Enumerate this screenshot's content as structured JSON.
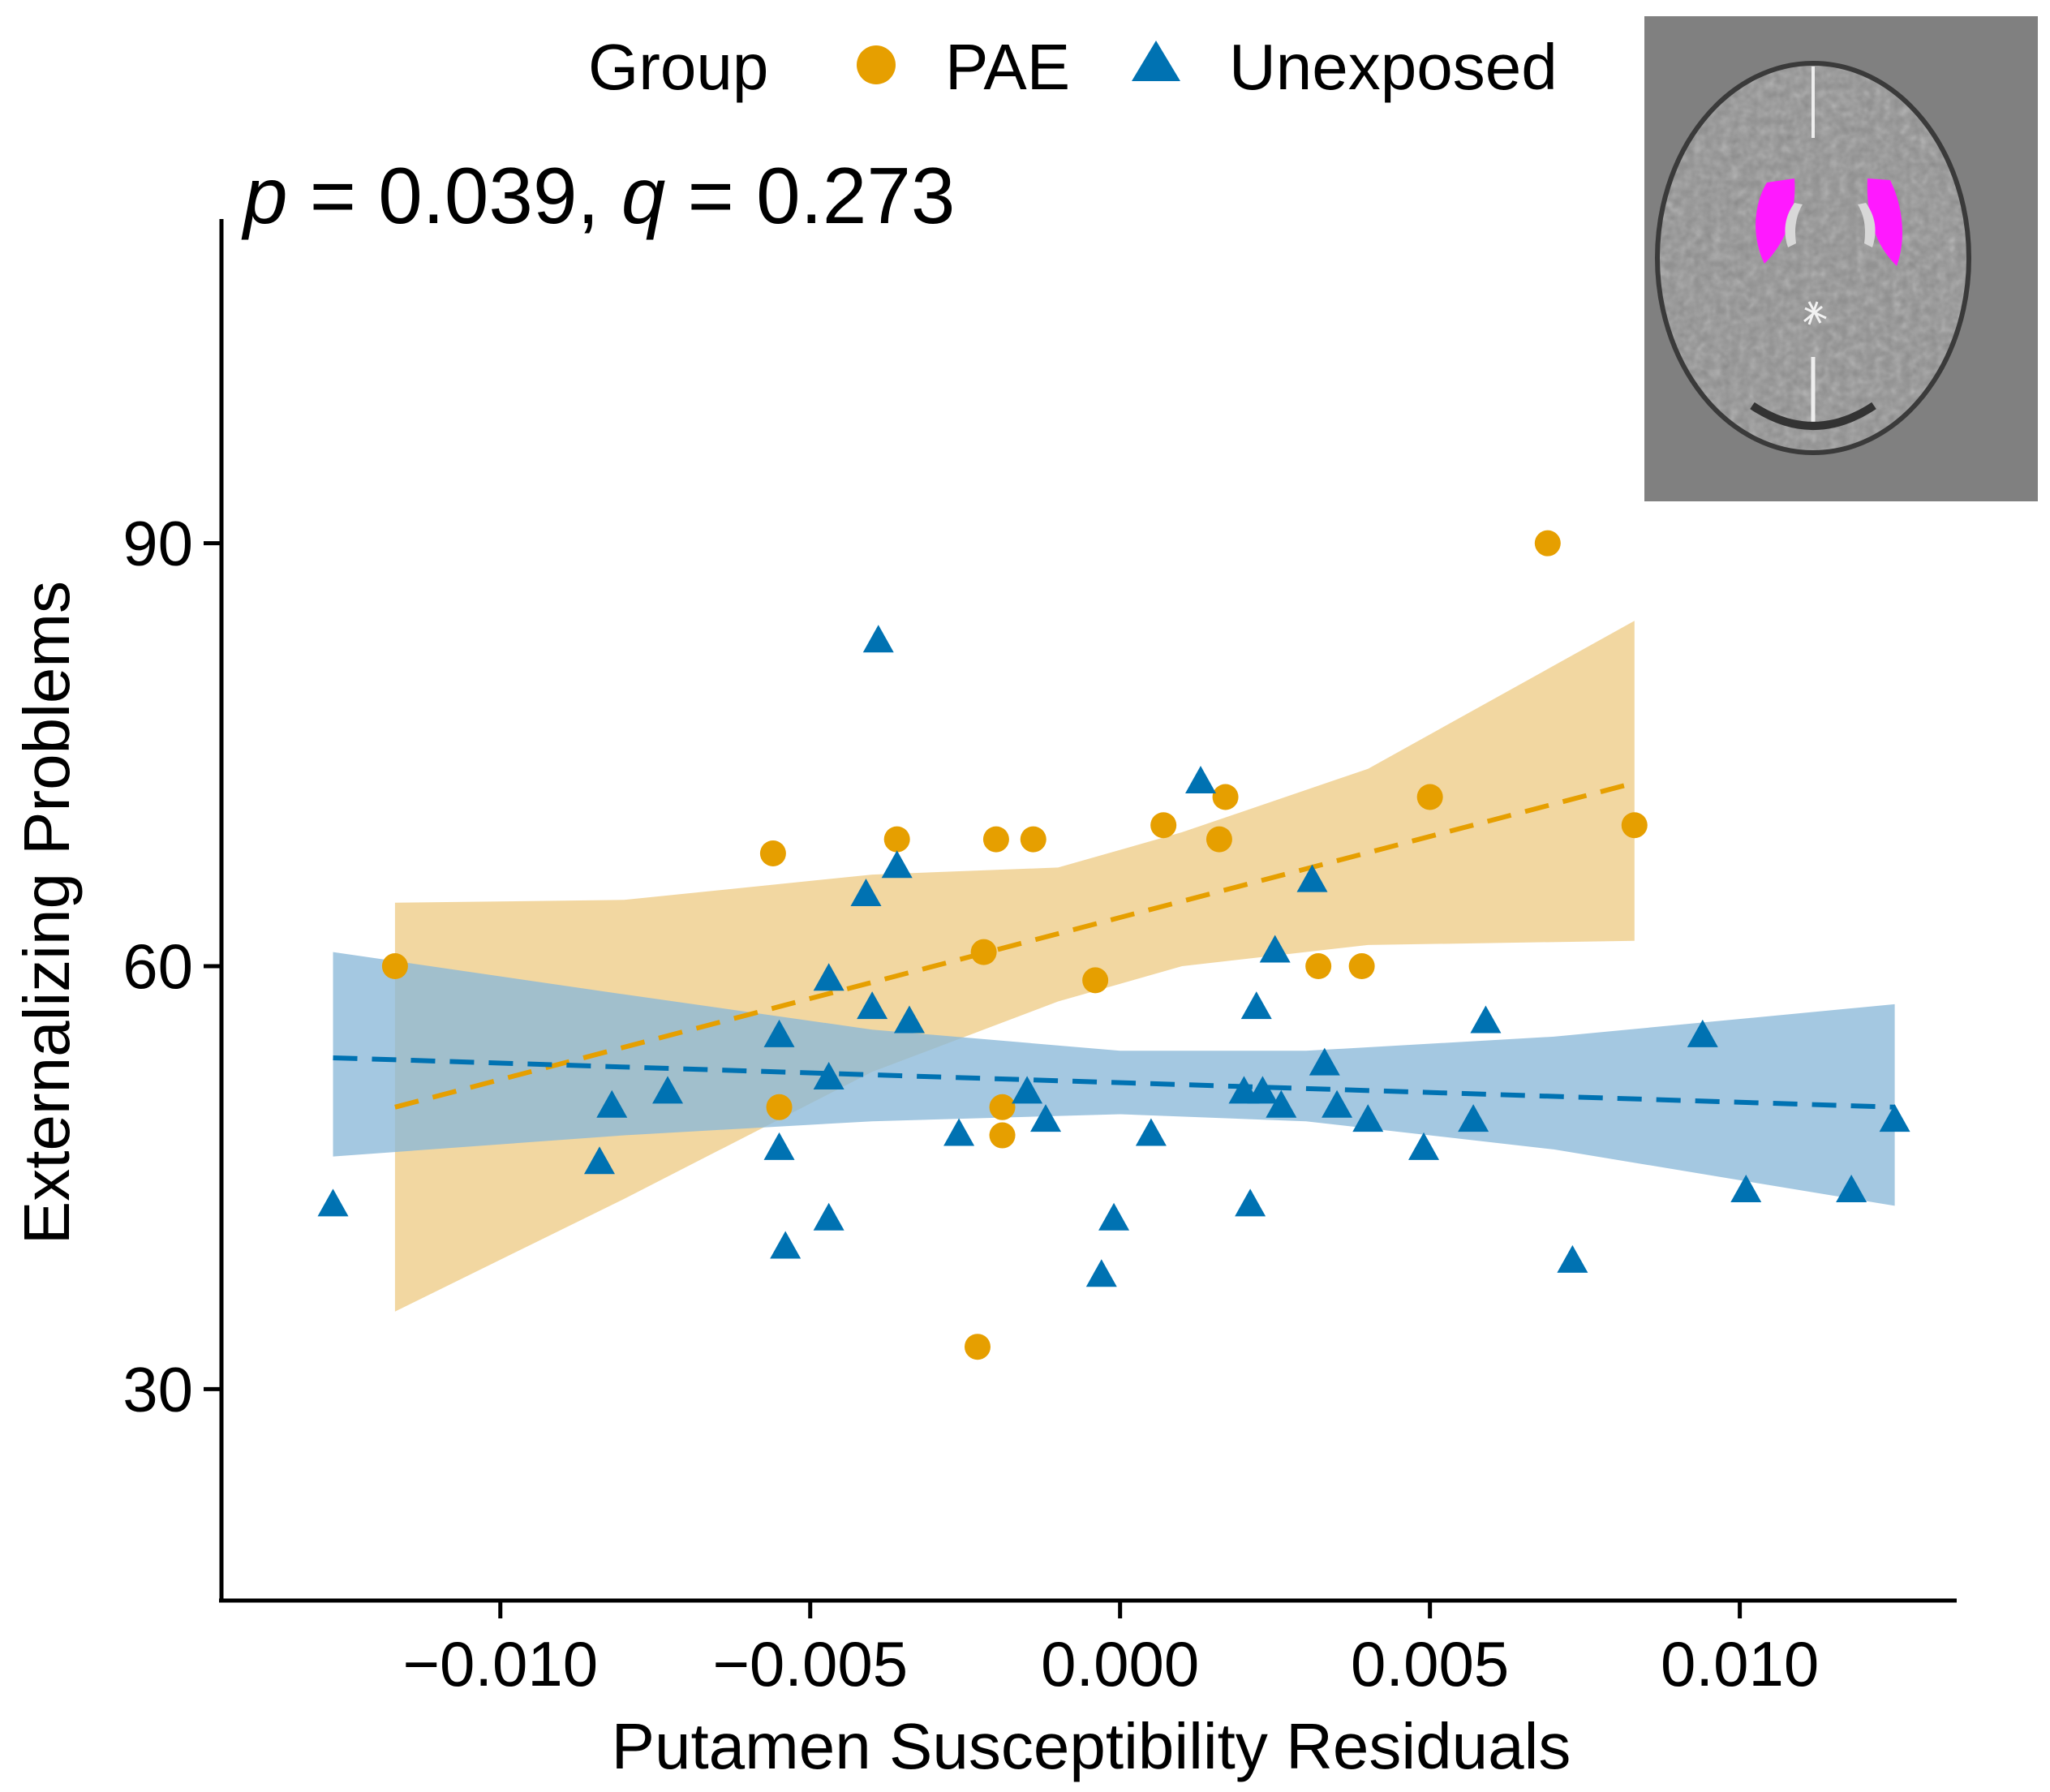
{
  "chart_data": {
    "type": "scatter",
    "title": "",
    "xlabel": "Putamen Susceptibility Residuals",
    "ylabel": "Externalizing Problems",
    "xlim": [
      -0.0145,
      0.0135
    ],
    "ylim": [
      15,
      113
    ],
    "x_ticks": [
      -0.01,
      -0.005,
      0.0,
      0.005,
      0.01
    ],
    "x_tick_labels": [
      "−0.010",
      "−0.005",
      "0.000",
      "0.005",
      "0.010"
    ],
    "y_ticks": [
      30,
      60,
      90
    ],
    "y_tick_labels": [
      "30",
      "60",
      "90"
    ],
    "annotation": {
      "p_symbol": "p",
      "p_text": " = 0.039, ",
      "q_symbol": "q",
      "q_text": " = 0.273"
    },
    "legend": {
      "title": "Group",
      "position": "top"
    },
    "inset_image": "brain-mri-axial-slice-putamen-highlighted",
    "series": [
      {
        "name": "PAE",
        "marker": "circle",
        "color": "#E69F00",
        "band_color": "#F0D090",
        "points": [
          {
            "x": -0.0117,
            "y": 60
          },
          {
            "x": -0.0056,
            "y": 68
          },
          {
            "x": -0.0055,
            "y": 50
          },
          {
            "x": -0.0036,
            "y": 69
          },
          {
            "x": -0.0023,
            "y": 33
          },
          {
            "x": -0.0022,
            "y": 61
          },
          {
            "x": -0.002,
            "y": 69
          },
          {
            "x": -0.0019,
            "y": 50
          },
          {
            "x": -0.0019,
            "y": 48
          },
          {
            "x": -0.0014,
            "y": 69
          },
          {
            "x": -0.0004,
            "y": 59
          },
          {
            "x": 0.0007,
            "y": 70
          },
          {
            "x": 0.0016,
            "y": 69
          },
          {
            "x": 0.0017,
            "y": 72
          },
          {
            "x": 0.0032,
            "y": 60
          },
          {
            "x": 0.0039,
            "y": 60
          },
          {
            "x": 0.005,
            "y": 72
          },
          {
            "x": 0.0069,
            "y": 90
          },
          {
            "x": 0.0083,
            "y": 70
          }
        ],
        "fit": {
          "x": [
            -0.0117,
            0.0083
          ],
          "y": [
            50,
            73
          ]
        },
        "band": {
          "x": [
            -0.0117,
            -0.008,
            -0.004,
            -0.001,
            0.001,
            0.004,
            0.0083
          ],
          "lower": [
            35.5,
            43.5,
            52.5,
            57.5,
            60.0,
            61.5,
            61.8
          ],
          "upper": [
            64.5,
            64.7,
            66.5,
            67.0,
            69.5,
            74.0,
            84.5
          ]
        }
      },
      {
        "name": "Unexposed",
        "marker": "triangle",
        "color": "#0072B2",
        "band_color": "#8AB8D8",
        "points": [
          {
            "x": -0.0127,
            "y": 43
          },
          {
            "x": -0.0084,
            "y": 46
          },
          {
            "x": -0.0082,
            "y": 50
          },
          {
            "x": -0.0073,
            "y": 51
          },
          {
            "x": -0.0055,
            "y": 47
          },
          {
            "x": -0.0055,
            "y": 55
          },
          {
            "x": -0.0054,
            "y": 40
          },
          {
            "x": -0.0047,
            "y": 59
          },
          {
            "x": -0.0047,
            "y": 52
          },
          {
            "x": -0.0047,
            "y": 42
          },
          {
            "x": -0.0041,
            "y": 65
          },
          {
            "x": -0.004,
            "y": 57
          },
          {
            "x": -0.0039,
            "y": 83
          },
          {
            "x": -0.0036,
            "y": 67
          },
          {
            "x": -0.0034,
            "y": 56
          },
          {
            "x": -0.0026,
            "y": 48
          },
          {
            "x": -0.0015,
            "y": 51
          },
          {
            "x": -0.0012,
            "y": 49
          },
          {
            "x": -0.0003,
            "y": 38
          },
          {
            "x": -0.0001,
            "y": 42
          },
          {
            "x": 0.0005,
            "y": 48
          },
          {
            "x": 0.0013,
            "y": 73
          },
          {
            "x": 0.002,
            "y": 51
          },
          {
            "x": 0.0021,
            "y": 43
          },
          {
            "x": 0.0022,
            "y": 57
          },
          {
            "x": 0.0023,
            "y": 51
          },
          {
            "x": 0.0025,
            "y": 61
          },
          {
            "x": 0.0026,
            "y": 50
          },
          {
            "x": 0.0031,
            "y": 66
          },
          {
            "x": 0.0033,
            "y": 53
          },
          {
            "x": 0.0035,
            "y": 50
          },
          {
            "x": 0.004,
            "y": 49
          },
          {
            "x": 0.0049,
            "y": 47
          },
          {
            "x": 0.0057,
            "y": 49
          },
          {
            "x": 0.0059,
            "y": 56
          },
          {
            "x": 0.0073,
            "y": 39
          },
          {
            "x": 0.0094,
            "y": 55
          },
          {
            "x": 0.0101,
            "y": 44
          },
          {
            "x": 0.0118,
            "y": 44
          },
          {
            "x": 0.0125,
            "y": 49
          }
        ],
        "fit": {
          "x": [
            -0.0127,
            0.0125
          ],
          "y": [
            53.5,
            50
          ]
        },
        "band": {
          "x": [
            -0.0127,
            -0.008,
            -0.004,
            0.0,
            0.003,
            0.007,
            0.0125
          ],
          "lower": [
            46.5,
            48.0,
            49.0,
            49.5,
            49.0,
            47.0,
            43.0
          ],
          "upper": [
            61.0,
            58.0,
            55.5,
            54.0,
            54.0,
            55.0,
            57.3
          ]
        }
      }
    ]
  }
}
